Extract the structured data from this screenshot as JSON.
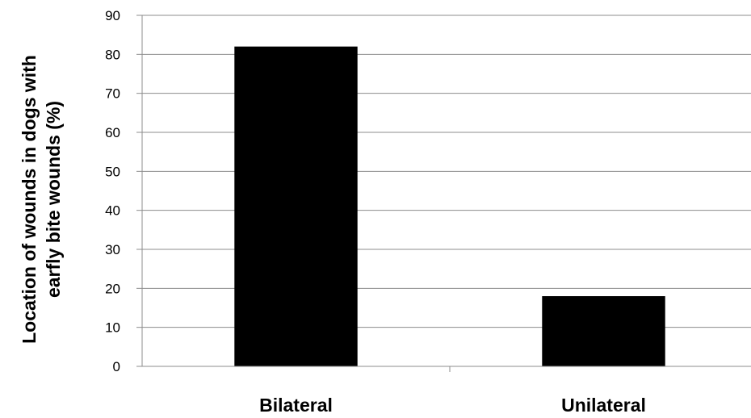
{
  "chart_data": {
    "type": "bar",
    "categories": [
      "Bilateral",
      "Unilateral"
    ],
    "values": [
      82,
      18
    ],
    "title": "",
    "xlabel": "",
    "ylabel_lines": [
      "Location of wounds in dogs with",
      "earfly bite wounds (%)"
    ],
    "ylim": [
      0,
      90
    ],
    "yticks": [
      0,
      10,
      20,
      30,
      40,
      50,
      60,
      70,
      80,
      90
    ],
    "grid": true,
    "legend": "none",
    "bar_color": "#000000",
    "grid_color": "#8c8c8c"
  }
}
